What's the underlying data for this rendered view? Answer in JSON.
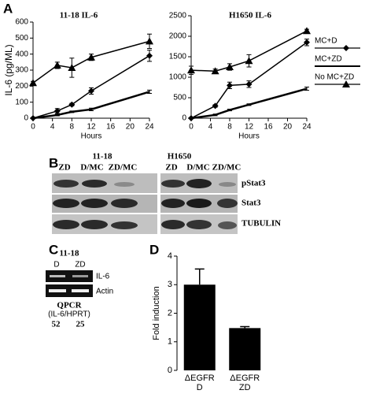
{
  "chart_data": [
    {
      "type": "line",
      "title": "11-18 IL-6",
      "x_label": "Hours",
      "y_label": "IL-6 (pg/ML)",
      "x": [
        0,
        5,
        8,
        12,
        24
      ],
      "xlim": [
        0,
        24
      ],
      "xticks": [
        0,
        4,
        8,
        12,
        16,
        20,
        24
      ],
      "ylim": [
        0,
        600
      ],
      "yticks": [
        0,
        100,
        200,
        300,
        400,
        500,
        600
      ],
      "series": [
        {
          "name": "MC+D",
          "color": "#000000",
          "marker": "diamond",
          "values": [
            0,
            45,
            85,
            170,
            390
          ],
          "errors": [
            0,
            15,
            8,
            20,
            35
          ]
        },
        {
          "name": "MC+ZD",
          "color": "#000000",
          "marker": "none",
          "values": [
            0,
            20,
            40,
            55,
            165
          ],
          "errors": [
            0,
            5,
            5,
            8,
            10
          ]
        },
        {
          "name": "No MC+ZD",
          "color": "#000000",
          "marker": "triangle",
          "values": [
            220,
            330,
            315,
            380,
            480
          ],
          "errors": [
            10,
            20,
            60,
            20,
            45
          ]
        }
      ]
    },
    {
      "type": "line",
      "title": "H1650 IL-6",
      "x_label": "Hours",
      "legend": "right",
      "x": [
        0,
        5,
        8,
        12,
        24
      ],
      "xlim": [
        0,
        24
      ],
      "xticks": [
        0,
        4,
        8,
        12,
        16,
        20,
        24
      ],
      "ylim": [
        0,
        2500
      ],
      "yticks": [
        0,
        500,
        1000,
        1500,
        2000,
        2500
      ],
      "series": [
        {
          "name": "MC+D",
          "color": "#000000",
          "marker": "diamond",
          "values": [
            0,
            300,
            800,
            830,
            1850
          ],
          "errors": [
            0,
            30,
            80,
            80,
            80
          ]
        },
        {
          "name": "MC+ZD",
          "color": "#000000",
          "marker": "none",
          "values": [
            0,
            80,
            200,
            330,
            720
          ],
          "errors": [
            0,
            20,
            20,
            20,
            40
          ]
        },
        {
          "name": "No MC+ZD",
          "color": "#000000",
          "marker": "triangle",
          "values": [
            1170,
            1150,
            1250,
            1400,
            2130
          ],
          "errors": [
            100,
            50,
            80,
            150,
            40
          ]
        }
      ]
    },
    {
      "type": "bar",
      "y_label": "Fold induction",
      "categories": [
        "ΔEGFR D",
        "ΔEGFR ZD"
      ],
      "values": [
        3.0,
        1.48
      ],
      "errors": [
        0.55,
        0.05
      ],
      "color": "#000000",
      "ylim": [
        0,
        4
      ],
      "yticks": [
        0,
        1,
        2,
        3,
        4
      ]
    }
  ],
  "panel_labels": [
    "A",
    "B",
    "C",
    "D"
  ],
  "blot_b": {
    "groups": [
      "11-18",
      "H1650"
    ],
    "lanes": [
      "ZD",
      "D/MC",
      "ZD/MC",
      "ZD",
      "D/MC",
      "ZD/MC"
    ],
    "rows": [
      "pStat3",
      "Stat3",
      "TUBULIN"
    ]
  },
  "blot_c": {
    "title": "11-18",
    "lanes": [
      "D",
      "ZD"
    ],
    "rows": [
      "IL-6",
      "Actin"
    ],
    "method": "QPCR",
    "ratio": "(IL-6/HPRT)",
    "values": [
      52,
      25
    ]
  }
}
